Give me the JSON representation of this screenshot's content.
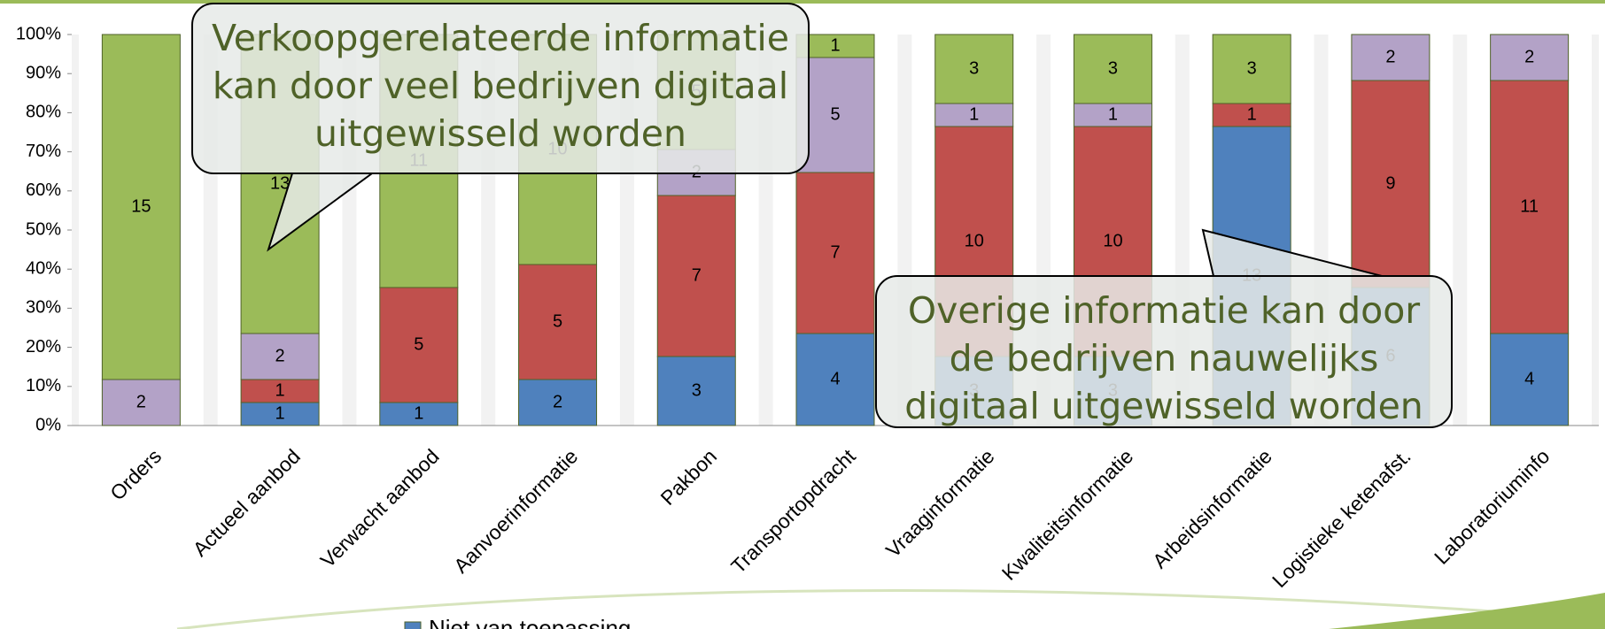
{
  "chart_data": {
    "type": "stacked_percent_bar",
    "categories": [
      "Orders",
      "Actueel aanbod",
      "Verwacht aanbod",
      "Aanvoerinformatie",
      "Pakbon",
      "Transportopdracht",
      "Vraaginformatie",
      "Kwaliteitsinformatie",
      "Arbeidsinformatie",
      "Logistieke ketenafst.",
      "Laboratoriuminfo"
    ],
    "series": [
      {
        "name": "Niet van toepassing",
        "color": "#4f81bd",
        "values": [
          0,
          1,
          1,
          2,
          3,
          4,
          3,
          3,
          13,
          6,
          4
        ]
      },
      {
        "color": "#c0504d",
        "values": [
          0,
          1,
          5,
          5,
          7,
          7,
          10,
          10,
          1,
          9,
          11
        ]
      },
      {
        "color": "#b3a2c7",
        "values": [
          2,
          2,
          0,
          0,
          2,
          5,
          1,
          1,
          0,
          2,
          2
        ]
      },
      {
        "color": "#9bbb59",
        "values": [
          15,
          13,
          11,
          10,
          5,
          1,
          3,
          3,
          3,
          0,
          0
        ]
      }
    ],
    "ylim": [
      0,
      100
    ],
    "yticks": [
      {
        "value": 0,
        "label": "0%"
      },
      {
        "value": 10,
        "label": "10%"
      },
      {
        "value": 20,
        "label": "20%"
      },
      {
        "value": 30,
        "label": "30%"
      },
      {
        "value": 40,
        "label": "40%"
      },
      {
        "value": 50,
        "label": "50%"
      },
      {
        "value": 60,
        "label": "60%"
      },
      {
        "value": 70,
        "label": "70%"
      },
      {
        "value": 80,
        "label": "80%"
      },
      {
        "value": 90,
        "label": "90%"
      },
      {
        "value": 100,
        "label": "100%"
      }
    ],
    "annotations": [
      {
        "lines": [
          "Verkoopgerelateerde informatie",
          "kan door veel bedrijven digitaal",
          "uitgewisseld worden"
        ]
      },
      {
        "lines": [
          "Overige informatie kan door",
          "de bedrijven nauwelijks",
          "digitaal uitgewisseld worden"
        ]
      }
    ]
  }
}
